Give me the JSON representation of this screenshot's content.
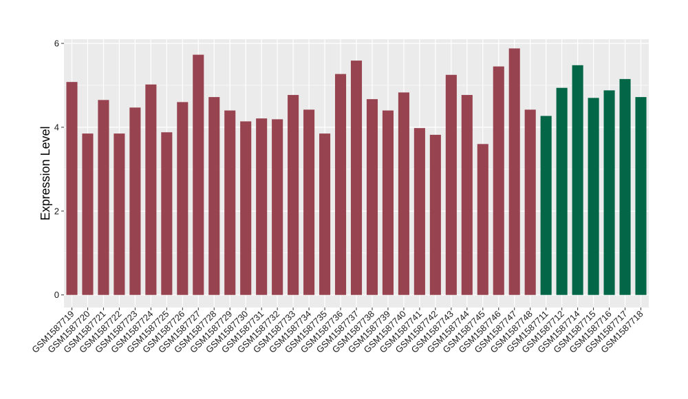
{
  "chart_data": {
    "type": "bar",
    "title": "",
    "xlabel": "",
    "ylabel": "Expression Level",
    "ylim": [
      -0.3,
      6.1
    ],
    "yticks": [
      0,
      2,
      4,
      6
    ],
    "grid": true,
    "legend": "none",
    "categories": [
      "GSM1587719",
      "GSM1587720",
      "GSM1587721",
      "GSM1587722",
      "GSM1587723",
      "GSM1587724",
      "GSM1587725",
      "GSM1587726",
      "GSM1587727",
      "GSM1587728",
      "GSM1587729",
      "GSM1587730",
      "GSM1587731",
      "GSM1587732",
      "GSM1587733",
      "GSM1587734",
      "GSM1587735",
      "GSM1587736",
      "GSM1587737",
      "GSM1587738",
      "GSM1587739",
      "GSM1587740",
      "GSM1587741",
      "GSM1587742",
      "GSM1587743",
      "GSM1587744",
      "GSM1587745",
      "GSM1587746",
      "GSM1587747",
      "GSM1587748",
      "GSM1587711",
      "GSM1587712",
      "GSM1587714",
      "GSM1587715",
      "GSM1587716",
      "GSM1587717",
      "GSM1587718"
    ],
    "values": [
      5.08,
      3.85,
      4.65,
      3.85,
      4.47,
      5.02,
      3.88,
      4.6,
      5.73,
      4.72,
      4.4,
      4.14,
      4.21,
      4.19,
      4.77,
      4.42,
      3.85,
      5.27,
      5.59,
      4.67,
      4.4,
      4.83,
      3.98,
      3.82,
      5.25,
      4.77,
      3.6,
      5.45,
      5.88,
      4.42,
      4.27,
      4.94,
      5.48,
      4.7,
      4.88,
      5.15,
      4.72
    ],
    "groups": [
      "a",
      "a",
      "a",
      "a",
      "a",
      "a",
      "a",
      "a",
      "a",
      "a",
      "a",
      "a",
      "a",
      "a",
      "a",
      "a",
      "a",
      "a",
      "a",
      "a",
      "a",
      "a",
      "a",
      "a",
      "a",
      "a",
      "a",
      "a",
      "a",
      "a",
      "b",
      "b",
      "b",
      "b",
      "b",
      "b",
      "b"
    ],
    "colors": {
      "a": "#984350",
      "b": "#036747"
    },
    "background": "#ebebeb",
    "gridline_color": "#ffffff"
  }
}
